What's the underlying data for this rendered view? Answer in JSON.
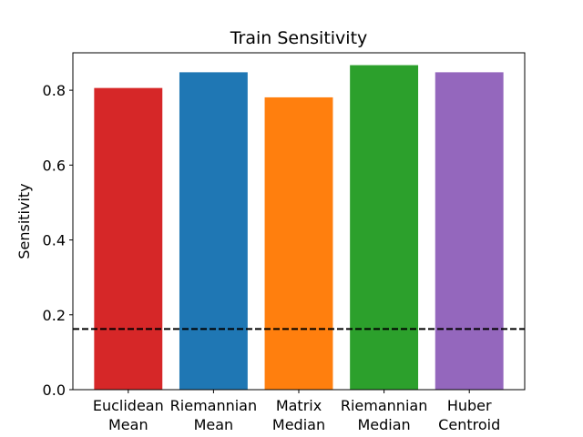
{
  "chart_data": {
    "type": "bar",
    "title": "Train Sensitivity",
    "xlabel": "",
    "ylabel": "Sensitivity",
    "categories": [
      [
        "Euclidean",
        "Mean"
      ],
      [
        "Riemannian",
        "Mean"
      ],
      [
        "Matrix",
        "Median"
      ],
      [
        "Riemannian",
        "Median"
      ],
      [
        "Huber",
        "Centroid"
      ]
    ],
    "values": [
      0.806,
      0.848,
      0.781,
      0.867,
      0.848
    ],
    "colors": [
      "#d62728",
      "#1f77b4",
      "#ff7f0e",
      "#2ca02c",
      "#9467bd"
    ],
    "ylim": [
      0,
      0.9
    ],
    "yticks": [
      0.0,
      0.2,
      0.4,
      0.6,
      0.8
    ],
    "ytick_labels": [
      "0.0",
      "0.2",
      "0.4",
      "0.6",
      "0.8"
    ],
    "reference_line": {
      "value": 0.162,
      "style": "dashed",
      "color": "#000000"
    },
    "grid": false,
    "legend": "none"
  }
}
